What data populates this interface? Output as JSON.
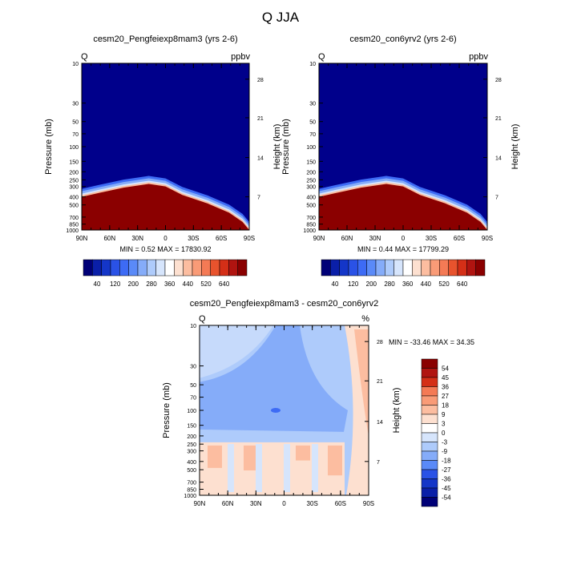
{
  "figure": {
    "title": "Q JJA"
  },
  "colors": {
    "top_scale": [
      "#000077",
      "#0a1fa8",
      "#1436c8",
      "#2a52e6",
      "#3d6bf5",
      "#5a8af8",
      "#85acf9",
      "#aecbfb",
      "#d6e5fc",
      "#ffffff",
      "#fde0d0",
      "#fcbda0",
      "#f99b77",
      "#f47a55",
      "#e8532d",
      "#d42f17",
      "#b01410",
      "#8a0000"
    ],
    "diff_scale": [
      "#8a0000",
      "#b01410",
      "#d42f17",
      "#f47a55",
      "#f99b77",
      "#fcbda0",
      "#fde0d0",
      "#ffffff",
      "#d6e5fc",
      "#aecbfb",
      "#85acf9",
      "#5a8af8",
      "#2a52e6",
      "#1436c8",
      "#0a1fa8",
      "#000077"
    ],
    "panel_upper": "#00008b",
    "panel_lower": "#8b0000"
  },
  "chart_data": [
    {
      "type": "heatmap",
      "title": "cesm20_Pengfeiexp8mam3 (yrs 2-6)",
      "left_label": "Q",
      "right_label": "ppbv",
      "ylabel": "Pressure (mb)",
      "ylabel_right": "Height (km)",
      "x_ticks": [
        "90N",
        "60N",
        "30N",
        "0",
        "30S",
        "60S",
        "90S"
      ],
      "y_ticks": [
        "10",
        "30",
        "50",
        "70",
        "100",
        "150",
        "200",
        "250",
        "300",
        "400",
        "500",
        "700",
        "850",
        "1000"
      ],
      "height_ticks": [
        "28",
        "21",
        "14",
        "7"
      ],
      "stats": "MIN =    0.52  MAX = 17830.92",
      "colorbar_labels": [
        "40",
        "120",
        "200",
        "280",
        "360",
        "440",
        "520",
        "640"
      ]
    },
    {
      "type": "heatmap",
      "title": "cesm20_con6yrv2 (yrs 2-6)",
      "left_label": "Q",
      "right_label": "ppbv",
      "ylabel": "Pressure (mb)",
      "ylabel_right": "Height (km)",
      "x_ticks": [
        "90N",
        "60N",
        "30N",
        "0",
        "30S",
        "60S",
        "90S"
      ],
      "y_ticks": [
        "10",
        "30",
        "50",
        "70",
        "100",
        "150",
        "200",
        "250",
        "300",
        "400",
        "500",
        "700",
        "850",
        "1000"
      ],
      "height_ticks": [
        "28",
        "21",
        "14",
        "7"
      ],
      "stats": "MIN =    0.44  MAX = 17799.29",
      "colorbar_labels": [
        "40",
        "120",
        "200",
        "280",
        "360",
        "440",
        "520",
        "640"
      ]
    },
    {
      "type": "heatmap",
      "title": "cesm20_Pengfeiexp8mam3 - cesm20_con6yrv2",
      "left_label": "Q",
      "right_label": "%",
      "ylabel": "Pressure (mb)",
      "ylabel_right": "Height (km)",
      "x_ticks": [
        "90N",
        "60N",
        "30N",
        "0",
        "30S",
        "60S",
        "90S"
      ],
      "y_ticks": [
        "10",
        "30",
        "50",
        "70",
        "100",
        "150",
        "200",
        "250",
        "300",
        "400",
        "500",
        "700",
        "850",
        "1000"
      ],
      "height_ticks": [
        "28",
        "21",
        "14",
        "7"
      ],
      "stats": "MIN = -33.46  MAX =  34.35",
      "colorbar_labels": [
        "54",
        "45",
        "36",
        "27",
        "18",
        "9",
        "3",
        "0",
        "-3",
        "-9",
        "-18",
        "-27",
        "-36",
        "-45",
        "-54"
      ]
    }
  ]
}
